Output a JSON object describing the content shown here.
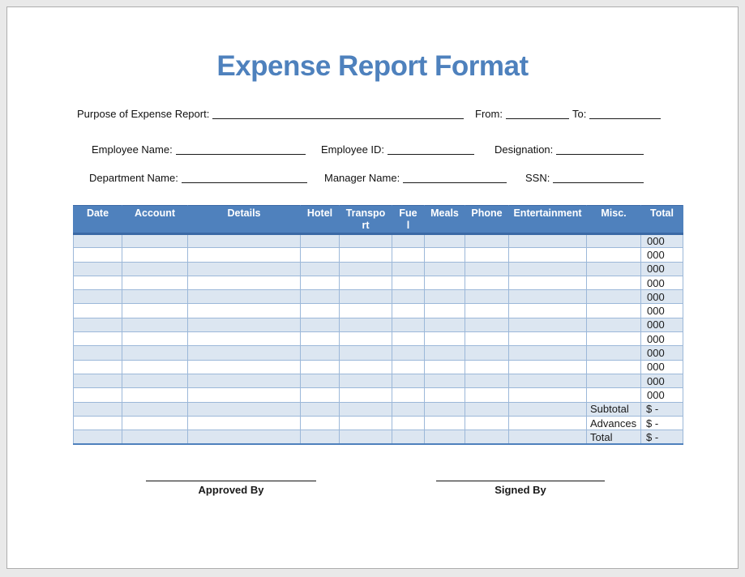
{
  "title": "Expense Report Format",
  "form": {
    "purpose": {
      "label": "Purpose of Expense Report:",
      "value": ""
    },
    "from": {
      "label": "From:",
      "value": ""
    },
    "to": {
      "label": "To:",
      "value": ""
    },
    "employee_name": {
      "label": "Employee Name:",
      "value": ""
    },
    "employee_id": {
      "label": "Employee ID:",
      "value": ""
    },
    "designation": {
      "label": "Designation:",
      "value": ""
    },
    "department_name": {
      "label": "Department Name:",
      "value": ""
    },
    "manager_name": {
      "label": "Manager Name:",
      "value": ""
    },
    "ssn": {
      "label": "SSN:",
      "value": ""
    }
  },
  "table": {
    "headers": [
      "Date",
      "Account",
      "Details",
      "Hotel",
      "Transport",
      "Fuel",
      "Meals",
      "Phone",
      "Entertainment",
      "Misc.",
      "Total"
    ],
    "rows": [
      {
        "total": "000"
      },
      {
        "total": "000"
      },
      {
        "total": "000"
      },
      {
        "total": "000"
      },
      {
        "total": "000"
      },
      {
        "total": "000"
      },
      {
        "total": "000"
      },
      {
        "total": "000"
      },
      {
        "total": "000"
      },
      {
        "total": "000"
      },
      {
        "total": "000"
      },
      {
        "total": "000"
      }
    ],
    "summary": [
      {
        "label": "Subtotal",
        "amount": "$ -"
      },
      {
        "label": "Advances",
        "amount": "$ -"
      },
      {
        "label": "Total",
        "amount": "$ -"
      }
    ]
  },
  "signatures": {
    "approved": "Approved By",
    "signed": "Signed By"
  },
  "colors": {
    "accent": "#4F81BD",
    "title_blue": "#4E81BD",
    "row_shade": "#DCE6F1",
    "grid_border": "#9CB8D9",
    "header_rule": "#3B69A5"
  }
}
